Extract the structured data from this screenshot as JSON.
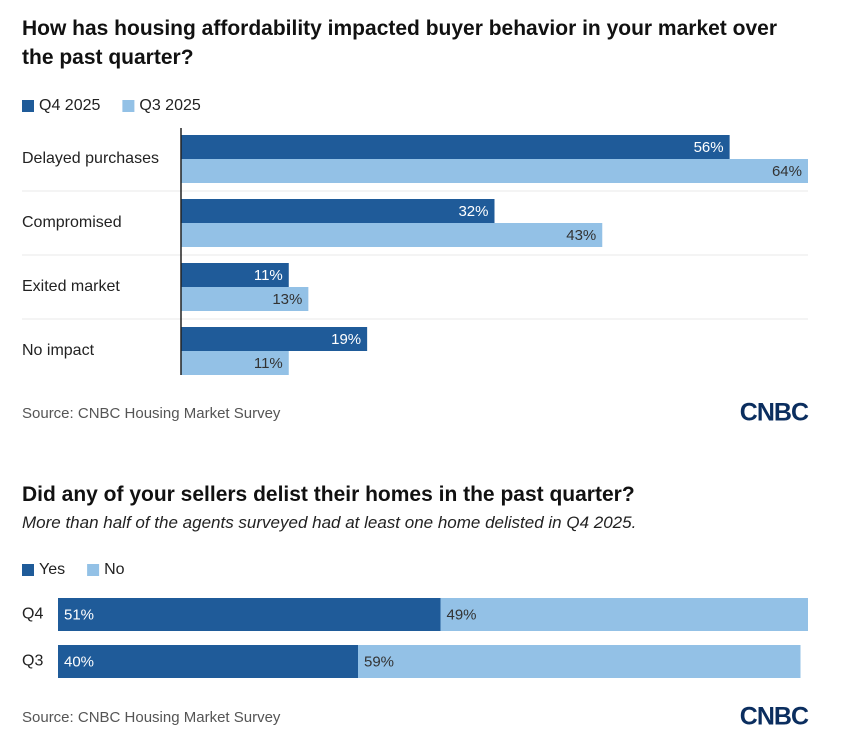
{
  "chart_data": [
    {
      "type": "bar",
      "title": "How has housing affordability impacted buyer behavior in your market over the past quarter?",
      "categories": [
        "Delayed purchases",
        "Compromised",
        "Exited market",
        "No impact"
      ],
      "series": [
        {
          "name": "Q4 2025",
          "color": "#1f5b99",
          "values": [
            56,
            32,
            11,
            19
          ],
          "value_labels": [
            "56%",
            "32%",
            "11%",
            "19%"
          ]
        },
        {
          "name": "Q3 2025",
          "color": "#93c1e6",
          "values": [
            64,
            43,
            13,
            11
          ],
          "value_labels": [
            "64%",
            "43%",
            "13%",
            "11%"
          ]
        }
      ],
      "source": "Source: CNBC Housing Market Survey",
      "logo": "CNBC"
    },
    {
      "type": "stacked-bar",
      "title": "Did any of your sellers delist their homes in the past quarter?",
      "subtitle": "More than half of the agents surveyed had at least one home delisted in Q4 2025.",
      "categories": [
        "Q4",
        "Q3"
      ],
      "series": [
        {
          "name": "Yes",
          "color": "#1f5b99",
          "values": [
            51,
            40
          ],
          "value_labels": [
            "51%",
            "40%"
          ]
        },
        {
          "name": "No",
          "color": "#93c1e6",
          "values": [
            49,
            59
          ],
          "value_labels": [
            "49%",
            "59%"
          ]
        }
      ],
      "source": "Source: CNBC Housing Market Survey",
      "logo": "CNBC"
    }
  ]
}
